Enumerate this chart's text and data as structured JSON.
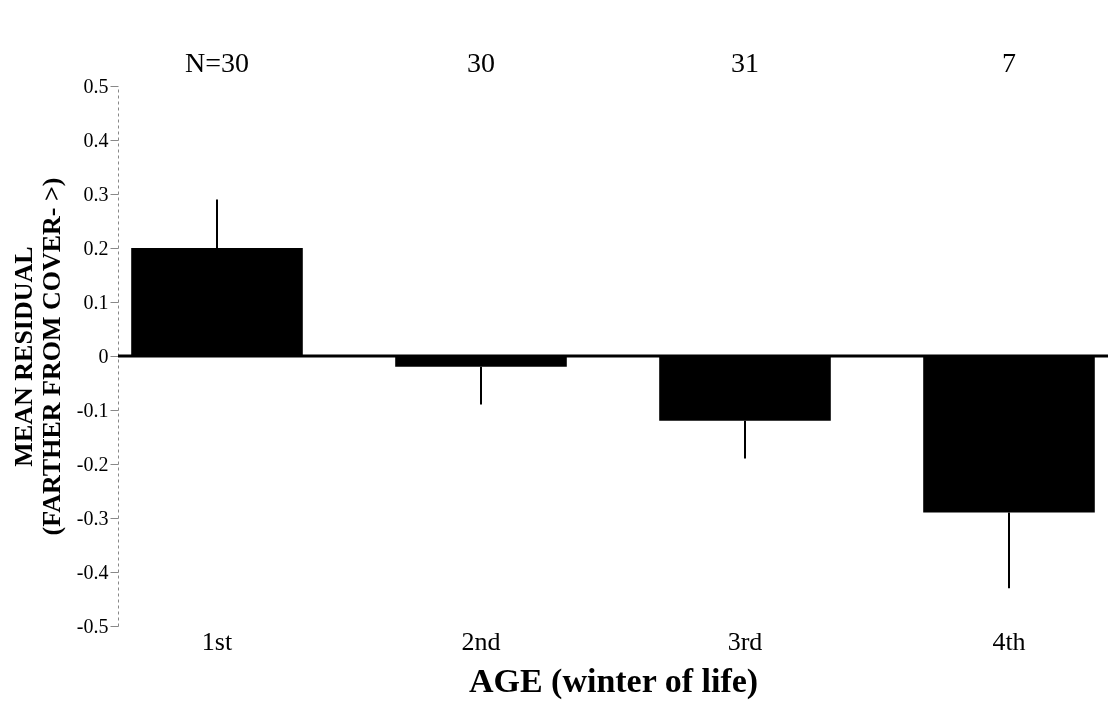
{
  "chart_data": {
    "type": "bar",
    "xlabel": "AGE (winter of life)",
    "ylabel": "MEAN RESIDUAL\n(FARTHER FROM COVER- >)",
    "categories": [
      "1st",
      "2nd",
      "3rd",
      "4th"
    ],
    "values": [
      0.2,
      -0.02,
      -0.12,
      -0.29
    ],
    "errors": [
      [
        0.2,
        0.29
      ],
      [
        -0.09,
        -0.02
      ],
      [
        -0.19,
        -0.12
      ],
      [
        -0.43,
        -0.29
      ]
    ],
    "color": "#000000",
    "ylim": [
      -0.5,
      0.5
    ],
    "yticks": [
      -0.5,
      -0.4,
      -0.3,
      -0.2,
      -0.1,
      0,
      0.1,
      0.2,
      0.3,
      0.4,
      0.5
    ],
    "ref_lines": [
      {
        "axis": "y",
        "value": 0,
        "color": "#000000"
      }
    ],
    "annotations": [
      "N=30",
      "30",
      "31",
      "7"
    ],
    "grid": false
  }
}
